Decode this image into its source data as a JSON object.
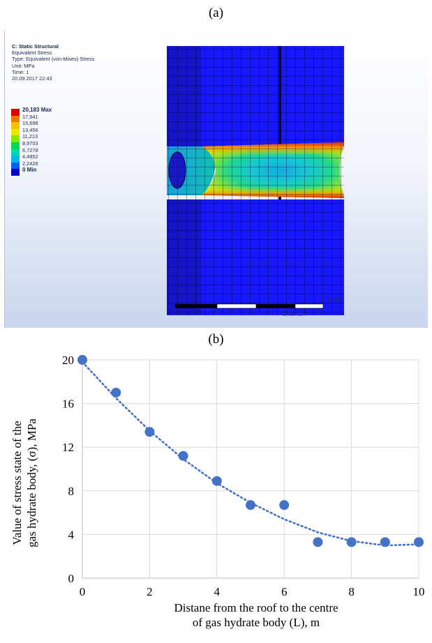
{
  "panel_a": {
    "label": "(a)",
    "info": {
      "title": "C: Static Structural",
      "lines": [
        "Equivalent Stress",
        "Type: Equivalent (von-Mises) Stress",
        "Unit: MPa",
        "Time: 1",
        "20.09.2017 22:43"
      ]
    },
    "legend": [
      {
        "label": "20,183 Max",
        "color": "#e00000"
      },
      {
        "label": "17,941",
        "color": "#f07800"
      },
      {
        "label": "15,698",
        "color": "#f4c000"
      },
      {
        "label": "13,456",
        "color": "#e6ea00"
      },
      {
        "label": "11,213",
        "color": "#8ce600"
      },
      {
        "label": "8,9703",
        "color": "#00d850"
      },
      {
        "label": "6,7278",
        "color": "#00d8b0"
      },
      {
        "label": "4,4852",
        "color": "#00b8e8"
      },
      {
        "label": "2,2426",
        "color": "#0060f0"
      },
      {
        "label": "0 Min",
        "color": "#0000c8"
      }
    ],
    "scale_text": "(mm)",
    "exponent_text": "5,75e+004"
  },
  "panel_b": {
    "label": "(b)"
  },
  "chart_data": {
    "type": "scatter",
    "title": "",
    "xlabel_lines": [
      "Distane from the roof to the centre",
      "of gas hydrate body (L), m"
    ],
    "ylabel_lines": [
      "Value of stress state of the",
      "gas hydrate body, (σ), MPa"
    ],
    "xlim": [
      0,
      10
    ],
    "ylim": [
      0,
      20
    ],
    "x_ticks": [
      0,
      2,
      4,
      6,
      8,
      10
    ],
    "y_ticks": [
      0,
      4,
      8,
      12,
      16,
      20
    ],
    "grid": true,
    "marker_color": "#4472c4",
    "series": [
      {
        "x": [
          0,
          1,
          2,
          3,
          4,
          5,
          6,
          7,
          8,
          9,
          10
        ],
        "y": [
          20,
          17,
          13.4,
          11.2,
          8.9,
          6.7,
          6.7,
          3.3,
          3.3,
          3.3,
          3.3
        ]
      }
    ],
    "trendline": {
      "style": "dotted",
      "x": [
        0,
        1,
        2,
        3,
        4,
        5,
        6,
        7,
        8,
        9,
        10
      ],
      "y": [
        19.8,
        16.5,
        13.5,
        10.9,
        8.7,
        6.9,
        5.4,
        4.2,
        3.4,
        3.0,
        3.1
      ]
    }
  }
}
